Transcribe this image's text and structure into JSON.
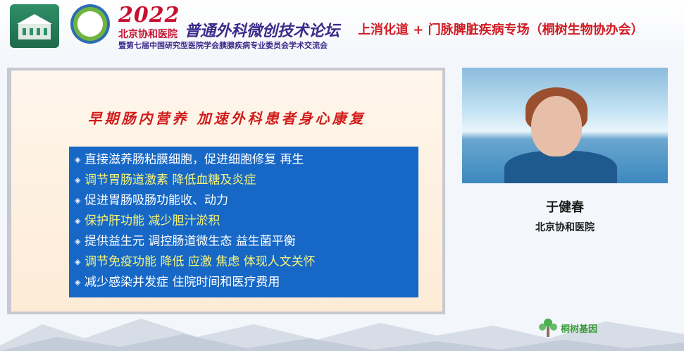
{
  "header": {
    "logo1_text": "北京协和医院",
    "logo2_text": "中国研究型医院学会",
    "year": "2022",
    "org": "北京协和医院",
    "forum": "普通外科微创技术论坛",
    "subtitle": "暨第七届中国研究型医院学会胰腺疾病专业委员会学术交流会",
    "session": "上消化道 + 门脉脾脏疾病专场（桐树生物协办会）"
  },
  "slide": {
    "title": "早期肠内营养  加速外科患者身心康复",
    "bullets": [
      {
        "text": "直接滋养肠粘膜细胞，促进细胞修复 再生",
        "highlight": false
      },
      {
        "text": "调节胃肠道激素 降低血糖及炎症",
        "highlight": true
      },
      {
        "text": "促进胃肠吸肠功能收、动力",
        "highlight": false
      },
      {
        "text": "保护肝功能 减少胆汁淤积",
        "highlight": true
      },
      {
        "text": "提供益生元 调控肠道微生态 益生菌平衡",
        "highlight": false
      },
      {
        "text": "调节免疫功能 降低 应激 焦虑 体现人文关怀",
        "highlight": true
      },
      {
        "text": "减少感染并发症 住院时间和医疗费用",
        "highlight": false
      }
    ],
    "bullet_icon": "diamond-bullet-icon"
  },
  "speaker": {
    "name": "于健春",
    "org": "北京协和医院"
  },
  "sponsor": {
    "name": "桐树基因",
    "icon": "tree-icon"
  },
  "colors": {
    "accent_red": "#d11b23",
    "bullet_bg": "#1768c6",
    "highlight": "#f8f57a",
    "forum_purple": "#3b2a8a"
  }
}
